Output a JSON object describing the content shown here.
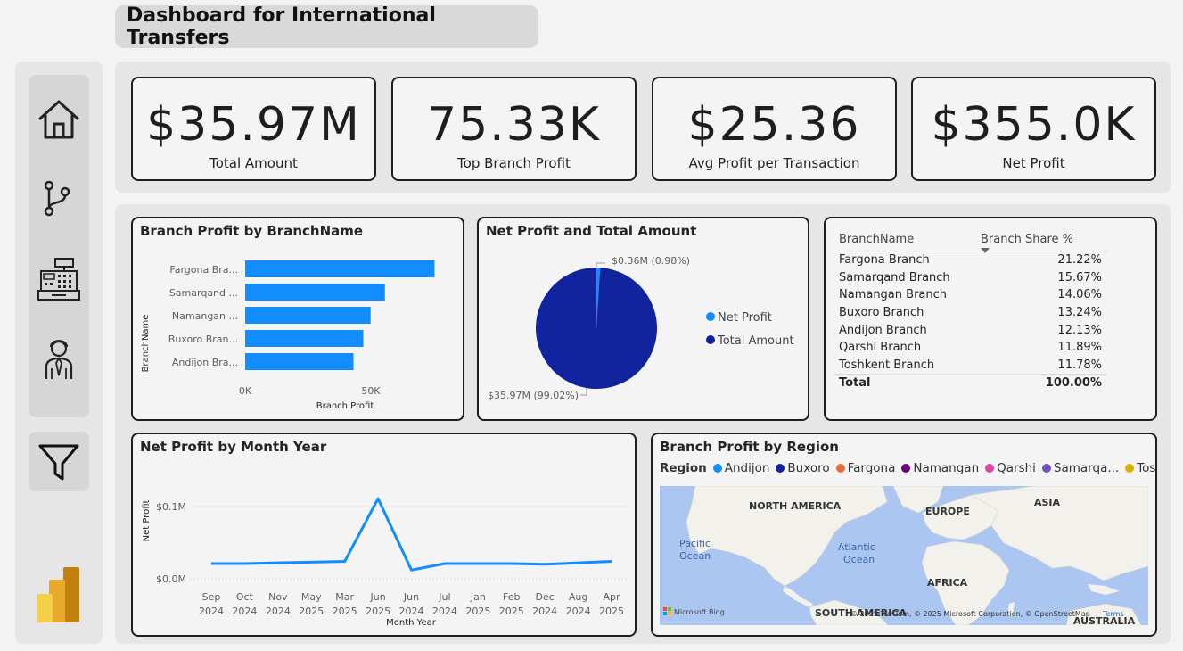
{
  "header": {
    "title": "Dashboard for International Transfers"
  },
  "sidebar": {
    "items": [
      {
        "name": "home-icon"
      },
      {
        "name": "branch-icon"
      },
      {
        "name": "cash-register-icon"
      },
      {
        "name": "user-icon"
      }
    ],
    "filter": "filter-icon",
    "logo": "power-bi-logo"
  },
  "kpis": [
    {
      "value": "$35.97M",
      "label": "Total Amount"
    },
    {
      "value": "75.33K",
      "label": "Top Branch Profit"
    },
    {
      "value": "$25.36",
      "label": "Avg Profit per Transaction"
    },
    {
      "value": "$355.0K",
      "label": "Net Profit"
    }
  ],
  "branch_chart": {
    "title": "Branch Profit by BranchName",
    "ylabel": "BranchName",
    "xlabel": "Branch Profit",
    "x_ticks": [
      "0K",
      "50K"
    ],
    "color": "#118DFF"
  },
  "pie_chart": {
    "title": "Net Profit and Total Amount",
    "label_small": "$0.36M (0.98%)",
    "label_large": "$35.97M (99.02%)",
    "legend": [
      {
        "name": "Net Profit",
        "color": "#118DFF"
      },
      {
        "name": "Total Amount",
        "color": "#12239E"
      }
    ]
  },
  "share_table": {
    "headers": [
      "BranchName",
      "Branch Share %"
    ],
    "rows": [
      [
        "Fargona Branch",
        "21.22%"
      ],
      [
        "Samarqand Branch",
        "15.67%"
      ],
      [
        "Namangan Branch",
        "14.06%"
      ],
      [
        "Buxoro Branch",
        "13.24%"
      ],
      [
        "Andijon Branch",
        "12.13%"
      ],
      [
        "Qarshi Branch",
        "11.89%"
      ],
      [
        "Toshkent Branch",
        "11.78%"
      ]
    ],
    "total": [
      "Total",
      "100.00%"
    ]
  },
  "line_chart": {
    "title": "Net Profit by Month Year",
    "ylabel": "Net Profit",
    "xlabel": "Month Year",
    "y_ticks": [
      "$0.1M",
      "$0.0M"
    ],
    "color": "#118DFF"
  },
  "map": {
    "title": "Branch Profit by Region",
    "legend_title": "Region",
    "legend": [
      {
        "name": "Andijon",
        "color": "#118DFF"
      },
      {
        "name": "Buxoro",
        "color": "#12239E"
      },
      {
        "name": "Fargona",
        "color": "#E66C37"
      },
      {
        "name": "Namangan",
        "color": "#6B007B"
      },
      {
        "name": "Qarshi",
        "color": "#E044A7"
      },
      {
        "name": "Samarqa...",
        "color": "#744EC2"
      },
      {
        "name": "Toshkent",
        "color": "#D9B300"
      }
    ],
    "labels": {
      "north_america": "NORTH AMERICA",
      "europe": "EUROPE",
      "asia": "ASIA",
      "pacific": "Pacific",
      "pacific2": "Ocean",
      "atlantic": "Atlantic",
      "atlantic2": "Ocean",
      "africa": "AFRICA",
      "south_america": "SOUTH AMERICA",
      "australia": "AUSTRALIA"
    },
    "bing": "Microsoft Bing",
    "copyright": "© 2025 TomTom, © 2025 Microsoft Corporation, © OpenStreetMap",
    "terms": "Terms"
  },
  "chart_data": [
    {
      "type": "bar",
      "title": "Branch Profit by BranchName",
      "categories": [
        "Fargona Bra...",
        "Samarqand ...",
        "Namangan ...",
        "Buxoro Bran...",
        "Andijon Bra..."
      ],
      "values": [
        75.33,
        55.6,
        49.9,
        47.0,
        43.1
      ],
      "xlabel": "Branch Profit",
      "ylabel": "BranchName",
      "xlim": [
        0,
        80
      ]
    },
    {
      "type": "pie",
      "title": "Net Profit and Total Amount",
      "categories": [
        "Net Profit",
        "Total Amount"
      ],
      "values": [
        0.36,
        35.97
      ]
    },
    {
      "type": "line",
      "title": "Net Profit by Month Year",
      "x": [
        "Sep 2024",
        "Oct 2024",
        "Nov 2024",
        "May 2025",
        "Mar 2025",
        "Jun 2025",
        "Jun 2024",
        "Jul 2024",
        "Jan 2025",
        "Feb 2025",
        "Dec 2024",
        "Aug 2024",
        "Apr 2025"
      ],
      "x_top": [
        "Sep",
        "Oct",
        "Nov",
        "May",
        "Mar",
        "Jun",
        "Jun",
        "Jul",
        "Jan",
        "Feb",
        "Dec",
        "Aug",
        "Apr"
      ],
      "x_bottom": [
        "2024",
        "2024",
        "2024",
        "2025",
        "2025",
        "2025",
        "2024",
        "2024",
        "2025",
        "2025",
        "2024",
        "2024",
        "2025"
      ],
      "values": [
        0.021,
        0.021,
        0.022,
        0.023,
        0.024,
        0.111,
        0.012,
        0.021,
        0.021,
        0.021,
        0.02,
        0.022,
        0.024
      ],
      "xlabel": "Month Year",
      "ylabel": "Net Profit",
      "ylim": [
        0,
        0.12
      ]
    }
  ]
}
